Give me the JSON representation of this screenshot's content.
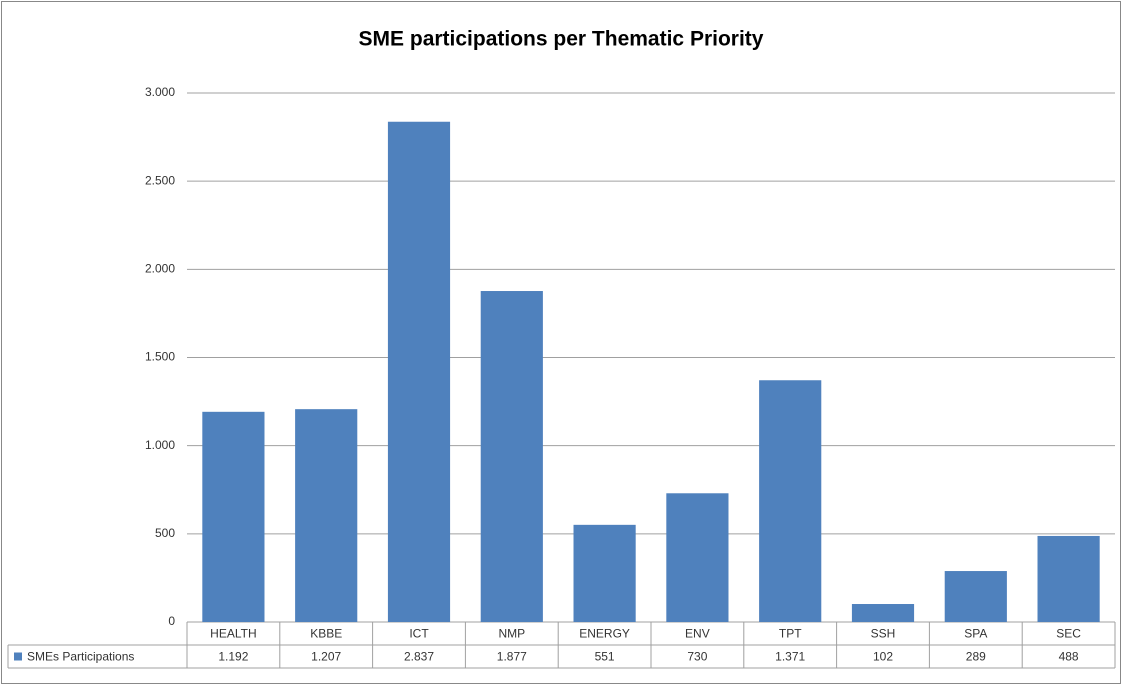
{
  "chart_data": {
    "type": "bar",
    "title": "SME participations per Thematic Priority",
    "categories": [
      "HEALTH",
      "KBBE",
      "ICT",
      "NMP",
      "ENERGY",
      "ENV",
      "TPT",
      "SSH",
      "SPA",
      "SEC"
    ],
    "series": [
      {
        "name": "SMEs Participations",
        "color": "#4f81bd",
        "values": [
          1192,
          1207,
          2837,
          1877,
          551,
          730,
          1371,
          102,
          289,
          488
        ],
        "value_labels": [
          "1.192",
          "1.207",
          "2.837",
          "1.877",
          "551",
          "730",
          "1.371",
          "102",
          "289",
          "488"
        ]
      }
    ],
    "ylim": [
      0,
      3000
    ],
    "yticks": [
      0,
      500,
      {
        "value": 1000,
        "label": "1.000"
      },
      {
        "value": 1500,
        "label": "1.500"
      },
      {
        "value": 2000,
        "label": "2.000"
      },
      {
        "value": 2500,
        "label": "2.500"
      },
      {
        "value": 3000,
        "label": "3.000"
      }
    ],
    "grid": true,
    "legend": "bottom-left"
  }
}
